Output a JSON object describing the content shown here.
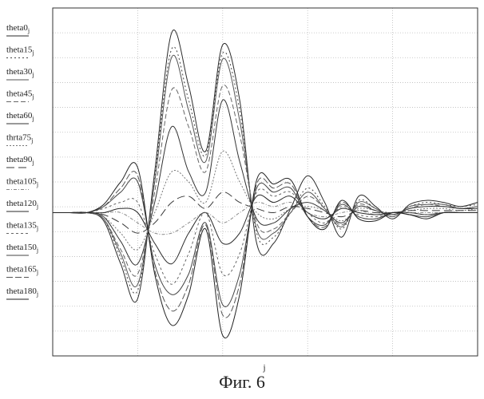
{
  "chart_data": {
    "type": "line",
    "xlabel": "j",
    "ylabel": "",
    "grid": true,
    "legend_placement": "left",
    "caption": "Фиг. 6",
    "x": [
      0,
      4,
      8,
      12,
      16,
      20,
      24,
      28,
      32,
      36,
      40,
      44,
      48,
      52,
      56,
      60,
      64,
      68,
      72,
      76,
      80,
      84,
      88,
      92,
      96,
      100
    ],
    "series": [
      {
        "name": "theta0",
        "subscript": "j",
        "dash": "solid",
        "color": "#2a2a2a",
        "values": [
          0,
          0,
          0,
          -0.04,
          -0.25,
          -0.42,
          0.2,
          0.88,
          0.62,
          0.3,
          0.82,
          0.55,
          -0.15,
          -0.15,
          0.02,
          0.18,
          0.05,
          -0.12,
          0.08,
          0.03,
          -0.03,
          0.04,
          0.06,
          0.05,
          0.03,
          0.05
        ]
      },
      {
        "name": "theta15",
        "subscript": "j",
        "dash": "2,3",
        "color": "#444444",
        "values": [
          0,
          0,
          0,
          -0.03,
          -0.22,
          -0.38,
          0.18,
          0.8,
          0.55,
          0.28,
          0.78,
          0.5,
          -0.1,
          -0.12,
          0.0,
          0.12,
          0.03,
          -0.08,
          0.06,
          0.02,
          -0.02,
          0.03,
          0.05,
          0.04,
          0.03,
          0.04
        ]
      },
      {
        "name": "theta30",
        "subscript": "j",
        "dash": "solid",
        "color": "#555555",
        "values": [
          0,
          0,
          0,
          -0.03,
          -0.2,
          -0.35,
          0.15,
          0.76,
          0.5,
          0.25,
          0.75,
          0.45,
          -0.08,
          -0.1,
          0.0,
          0.1,
          0.02,
          -0.07,
          0.05,
          0.02,
          -0.02,
          0.03,
          0.04,
          0.04,
          0.02,
          0.03
        ]
      },
      {
        "name": "theta45",
        "subscript": "j",
        "dash": "6,3",
        "color": "#666666",
        "values": [
          0,
          0,
          0,
          -0.03,
          -0.18,
          -0.3,
          0.1,
          0.6,
          0.42,
          0.2,
          0.62,
          0.38,
          -0.05,
          -0.08,
          0.0,
          0.08,
          0.02,
          -0.06,
          0.04,
          0.01,
          -0.01,
          0.02,
          0.04,
          0.03,
          0.02,
          0.03
        ]
      },
      {
        "name": "theta60",
        "subscript": "j",
        "dash": "solid",
        "color": "#333333",
        "values": [
          0,
          0,
          0,
          -0.02,
          -0.14,
          -0.25,
          0.05,
          0.42,
          0.2,
          0.1,
          0.55,
          0.25,
          -0.03,
          -0.05,
          0.02,
          0.05,
          0.01,
          -0.05,
          0.03,
          0.01,
          -0.01,
          0.02,
          0.03,
          0.03,
          0.02,
          0.02
        ]
      },
      {
        "name": "thrta75",
        "subscript": "j",
        "dash": "2,2",
        "color": "#777777",
        "values": [
          0,
          0,
          0,
          -0.02,
          -0.1,
          -0.18,
          0.0,
          0.2,
          0.15,
          0.05,
          0.3,
          0.15,
          0.0,
          -0.03,
          0.02,
          0.03,
          0.01,
          -0.04,
          0.02,
          0.01,
          0.0,
          0.01,
          0.02,
          0.02,
          0.01,
          0.02
        ]
      },
      {
        "name": "theta90",
        "subscript": "j",
        "dash": "10,5",
        "color": "#3a3a3a",
        "values": [
          0,
          0,
          0,
          -0.01,
          -0.05,
          -0.1,
          -0.05,
          0.05,
          0.08,
          0.02,
          0.1,
          0.05,
          0.02,
          0.0,
          0.03,
          0.02,
          0.0,
          -0.02,
          0.01,
          0.0,
          0.0,
          0.01,
          0.01,
          0.01,
          0.01,
          0.01
        ]
      },
      {
        "name": "theta105",
        "subscript": "j",
        "dash": "4,2,1,2",
        "color": "#888888",
        "values": [
          0,
          0,
          0,
          0.0,
          0.0,
          -0.05,
          -0.1,
          -0.1,
          -0.05,
          0.0,
          -0.05,
          0.0,
          0.05,
          0.03,
          0.05,
          0.0,
          -0.02,
          0.0,
          0.01,
          -0.01,
          0.0,
          0.0,
          0.0,
          0.0,
          0.0,
          0.0
        ]
      },
      {
        "name": "theta120",
        "subscript": "j",
        "dash": "solid",
        "color": "#2a2a2a",
        "values": [
          0,
          0,
          0,
          0.0,
          0.02,
          0.0,
          -0.15,
          -0.25,
          -0.1,
          0.0,
          -0.15,
          -0.1,
          0.08,
          0.05,
          0.08,
          0.0,
          -0.03,
          0.02,
          0.0,
          -0.01,
          0.0,
          0.0,
          -0.01,
          0.0,
          0.0,
          0.0
        ]
      },
      {
        "name": "theta135",
        "subscript": "j",
        "dash": "3,3",
        "color": "#666666",
        "values": [
          0,
          0,
          0,
          0.02,
          0.05,
          0.05,
          -0.2,
          -0.35,
          -0.2,
          0.0,
          -0.3,
          -0.2,
          0.1,
          0.08,
          0.1,
          0.0,
          -0.05,
          0.03,
          -0.01,
          -0.02,
          0.0,
          0.0,
          -0.01,
          0.0,
          0.0,
          0.0
        ]
      },
      {
        "name": "theta150",
        "subscript": "j",
        "dash": "solid",
        "color": "#444444",
        "values": [
          0,
          0,
          0,
          0.03,
          0.1,
          0.15,
          -0.25,
          -0.4,
          -0.3,
          -0.05,
          -0.45,
          -0.3,
          0.12,
          0.1,
          0.12,
          -0.02,
          -0.06,
          0.04,
          -0.02,
          -0.03,
          0.0,
          -0.01,
          -0.02,
          0.0,
          0.0,
          0.0
        ]
      },
      {
        "name": "theta165",
        "subscript": "j",
        "dash": "8,3",
        "color": "#555555",
        "values": [
          0,
          0,
          0,
          0.03,
          0.12,
          0.18,
          -0.28,
          -0.48,
          -0.35,
          -0.06,
          -0.5,
          -0.35,
          0.14,
          0.12,
          0.14,
          -0.02,
          -0.07,
          0.05,
          -0.02,
          -0.03,
          0.0,
          -0.01,
          -0.02,
          0.0,
          0.0,
          0.0
        ]
      },
      {
        "name": "theta180",
        "subscript": "j",
        "dash": "solid",
        "color": "#222222",
        "values": [
          0,
          0,
          0,
          0.04,
          0.15,
          0.22,
          -0.3,
          -0.55,
          -0.4,
          -0.08,
          -0.6,
          -0.4,
          0.16,
          0.14,
          0.16,
          -0.02,
          -0.08,
          0.06,
          -0.03,
          -0.04,
          0.0,
          -0.01,
          -0.03,
          0.0,
          0.0,
          0.0
        ]
      }
    ]
  }
}
